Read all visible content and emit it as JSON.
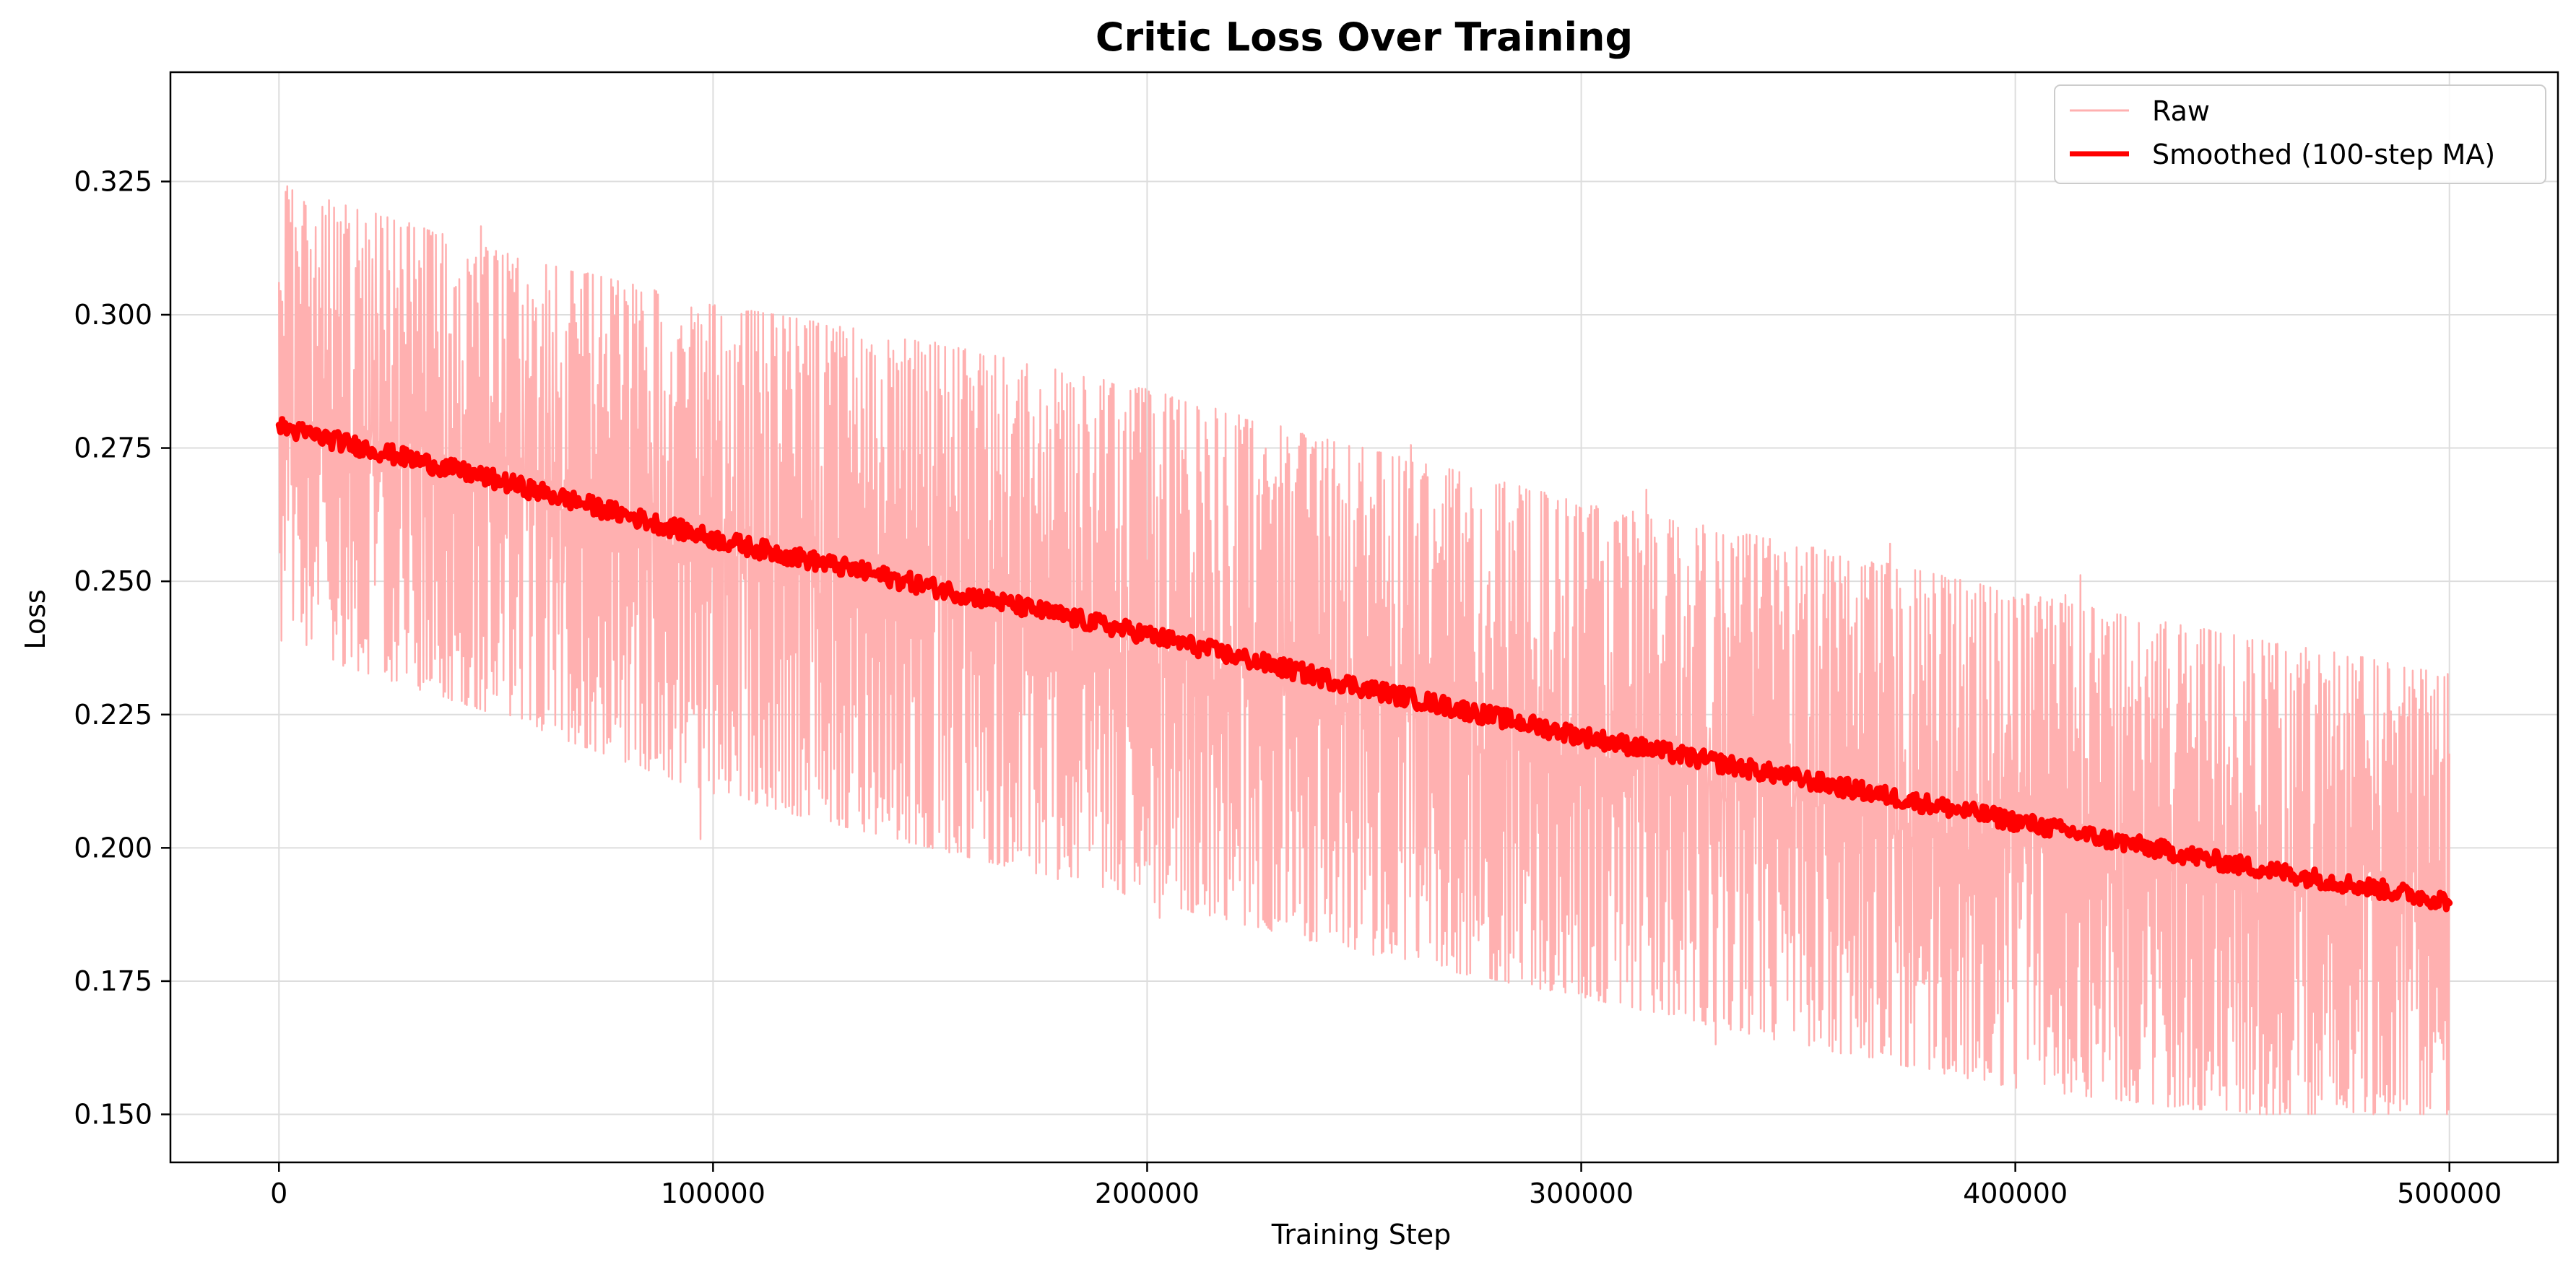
{
  "chart_data": {
    "type": "line",
    "title": "Critic Loss Over Training",
    "xlabel": "Training Step",
    "ylabel": "Loss",
    "xlim": [
      -25000,
      525000
    ],
    "ylim": [
      0.141,
      0.3455
    ],
    "x_ticks": [
      0,
      100000,
      200000,
      300000,
      400000,
      500000
    ],
    "x_tick_labels": [
      "0",
      "100000",
      "200000",
      "300000",
      "400000",
      "500000"
    ],
    "y_ticks": [
      0.15,
      0.175,
      0.2,
      0.225,
      0.25,
      0.275,
      0.3,
      0.325
    ],
    "y_tick_labels": [
      "0.150",
      "0.175",
      "0.200",
      "0.225",
      "0.250",
      "0.275",
      "0.300",
      "0.325"
    ],
    "grid": true,
    "legend_position": "top-right",
    "series": [
      {
        "name": "Raw",
        "color": "#ffb0b0",
        "style": "thin noisy line",
        "x": [
          0,
          50000,
          100000,
          150000,
          200000,
          250000,
          300000,
          350000,
          400000,
          450000,
          500000
        ],
        "upper_envelope": [
          0.325,
          0.312,
          0.302,
          0.295,
          0.286,
          0.275,
          0.265,
          0.257,
          0.248,
          0.24,
          0.233
        ],
        "lower_envelope": [
          0.238,
          0.225,
          0.21,
          0.2,
          0.19,
          0.18,
          0.172,
          0.163,
          0.155,
          0.15,
          0.15
        ],
        "values": [
          0.279,
          0.27,
          0.258,
          0.249,
          0.24,
          0.23,
          0.221,
          0.213,
          0.205,
          0.197,
          0.19
        ],
        "y_floor": 0.15
      },
      {
        "name": "Smoothed (100-step MA)",
        "color": "#ff0000",
        "style": "thick line",
        "x": [
          0,
          50000,
          100000,
          150000,
          200000,
          250000,
          300000,
          350000,
          400000,
          450000,
          500000
        ],
        "values": [
          0.279,
          0.269,
          0.258,
          0.249,
          0.24,
          0.23,
          0.221,
          0.213,
          0.205,
          0.197,
          0.19
        ]
      }
    ]
  }
}
